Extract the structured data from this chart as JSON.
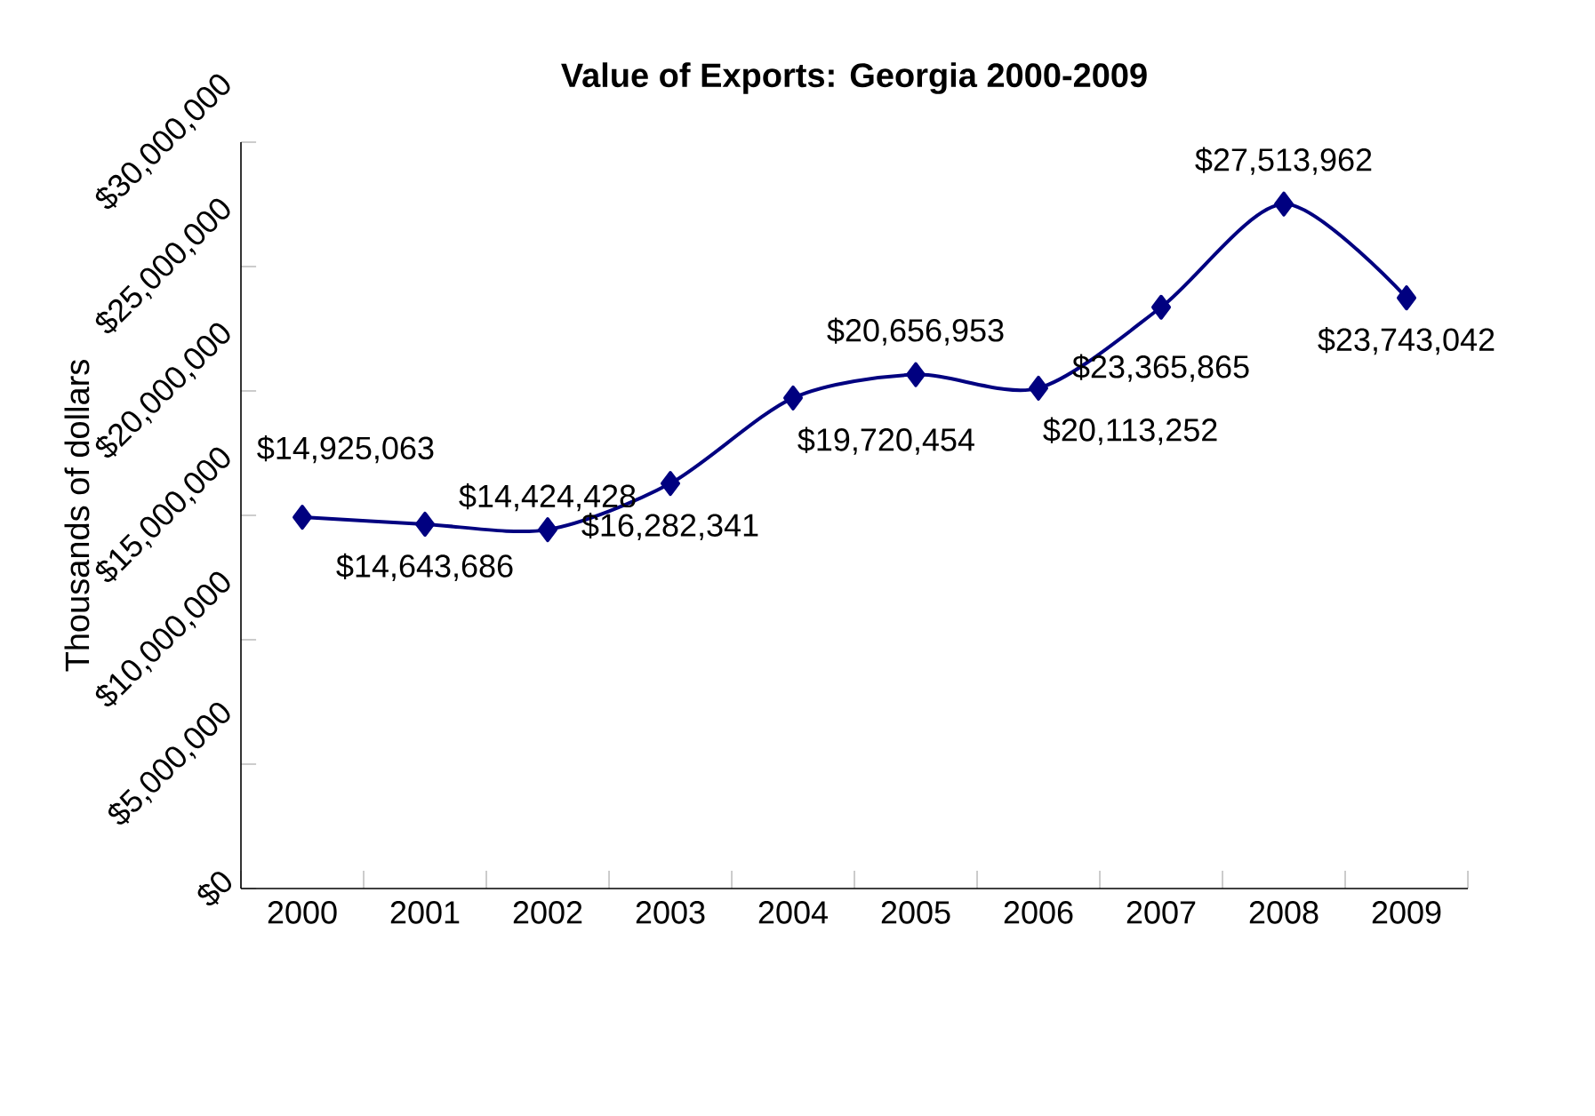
{
  "chart_data": {
    "type": "line",
    "title": "Value of Exports: Georgia 2000-2009",
    "ylabel": "Thousands of dollars",
    "categories": [
      "2000",
      "2001",
      "2002",
      "2003",
      "2004",
      "2005",
      "2006",
      "2007",
      "2008",
      "2009"
    ],
    "series": [
      {
        "color": "#000080",
        "values": [
          14925063,
          14643686,
          14424428,
          16282341,
          19720454,
          20656953,
          20113252,
          23365865,
          27513962,
          23743042
        ],
        "value_labels": [
          "$14,925,063",
          "$14,643,686",
          "$14,424,428",
          "$16,282,341",
          "$19,720,454",
          "$20,656,953",
          "$20,113,252",
          "$23,365,865",
          "$27,513,962",
          "$23,743,042"
        ]
      }
    ],
    "ylim": [
      0,
      30000000
    ],
    "yticks": [
      {
        "value": 0,
        "label": "$0"
      },
      {
        "value": 5000000,
        "label": "$5,000,000"
      },
      {
        "value": 10000000,
        "label": "$10,000,000"
      },
      {
        "value": 15000000,
        "label": "$15,000,000"
      },
      {
        "value": 20000000,
        "label": "$20,000,000"
      },
      {
        "value": 25000000,
        "label": "$25,000,000"
      },
      {
        "value": 30000000,
        "label": "$30,000,000"
      }
    ],
    "marker": "diamond",
    "line_style": "solid",
    "grid": false
  }
}
